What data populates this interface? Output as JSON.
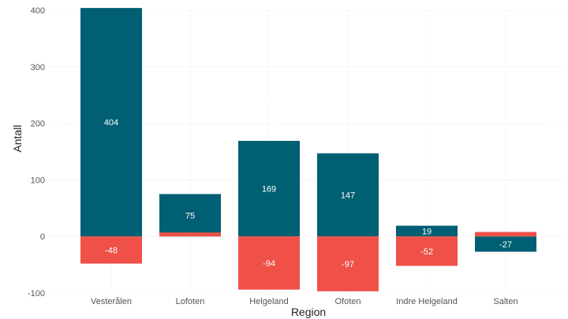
{
  "chart_data": {
    "type": "bar",
    "stacked": true,
    "xlabel": "Region",
    "ylabel": "Antall",
    "ylim": [
      -100,
      400
    ],
    "yticks": [
      -100,
      0,
      100,
      200,
      300,
      400
    ],
    "grid": true,
    "categories": [
      "Vesterålen",
      "Lofoten",
      "Helgeland",
      "Ofoten",
      "Indre Helgeland",
      "Salten"
    ],
    "series": [
      {
        "color": "#005f73",
        "values": [
          404,
          75,
          169,
          147,
          19,
          -27
        ],
        "labels": [
          "404",
          "75",
          "169",
          "147",
          "19",
          "-27"
        ]
      },
      {
        "color": "#ef5148",
        "values": [
          -48,
          7,
          -94,
          -97,
          -52,
          8
        ],
        "labels": [
          "-48",
          "",
          "-94",
          "-97",
          "-52",
          ""
        ]
      }
    ]
  }
}
